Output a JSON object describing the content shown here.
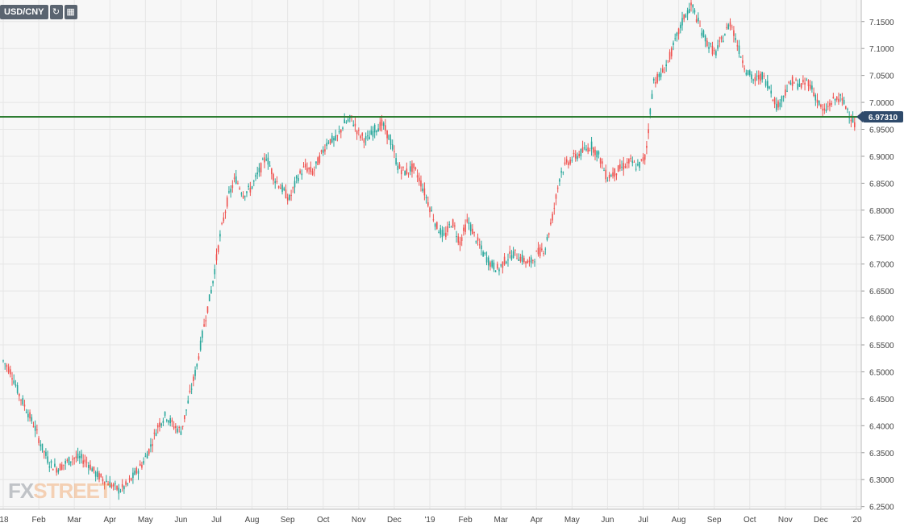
{
  "toolbar": {
    "symbol": "USD/CNY",
    "refresh_icon": "refresh-icon",
    "calendar_icon": "calendar-icon"
  },
  "watermark": {
    "part1": "FX",
    "part2": "STREET"
  },
  "colors": {
    "up": "#26a69a",
    "down": "#ef5350",
    "support_line": "#2e7d32",
    "price_badge": "#2f4a6b",
    "grid": "#e6e6e6",
    "background": "#f7f7f7"
  },
  "chart_data": {
    "type": "candlestick",
    "symbol": "USD/CNY",
    "ylim": [
      6.245,
      7.19
    ],
    "y_ticks": [
      "7.1500",
      "7.1000",
      "7.0500",
      "7.0000",
      "6.9500",
      "6.9000",
      "6.8500",
      "6.8000",
      "6.7500",
      "6.7000",
      "6.6500",
      "6.6000",
      "6.5500",
      "6.5000",
      "6.4500",
      "6.4000",
      "6.3500",
      "6.3000",
      "6.2500"
    ],
    "x_ticks": [
      "'18",
      "Feb",
      "Mar",
      "Apr",
      "May",
      "Jun",
      "Jul",
      "Aug",
      "Sep",
      "Oct",
      "Nov",
      "Dec",
      "'19",
      "Feb",
      "Mar",
      "Apr",
      "May",
      "Jun",
      "Jul",
      "Aug",
      "Sep",
      "Oct",
      "Nov",
      "Dec",
      "'20"
    ],
    "current_price": "6.97310",
    "horizontal_line": 6.9731,
    "grid": true,
    "approx_daily_closes": [
      6.52,
      6.5,
      6.46,
      6.43,
      6.4,
      6.36,
      6.33,
      6.32,
      6.33,
      6.34,
      6.34,
      6.33,
      6.31,
      6.3,
      6.29,
      6.28,
      6.29,
      6.31,
      6.33,
      6.36,
      6.4,
      6.42,
      6.4,
      6.39,
      6.45,
      6.51,
      6.59,
      6.66,
      6.75,
      6.82,
      6.86,
      6.83,
      6.84,
      6.87,
      6.9,
      6.86,
      6.84,
      6.82,
      6.86,
      6.88,
      6.87,
      6.9,
      6.93,
      6.93,
      6.96,
      6.97,
      6.94,
      6.93,
      6.95,
      6.96,
      6.93,
      6.88,
      6.87,
      6.88,
      6.85,
      6.81,
      6.77,
      6.75,
      6.78,
      6.74,
      6.78,
      6.75,
      6.72,
      6.7,
      6.69,
      6.71,
      6.72,
      6.71,
      6.7,
      6.72,
      6.73,
      6.79,
      6.87,
      6.89,
      6.9,
      6.91,
      6.92,
      6.9,
      6.86,
      6.87,
      6.88,
      6.89,
      6.88,
      6.9,
      7.04,
      7.05,
      7.08,
      7.12,
      7.16,
      7.18,
      7.14,
      7.11,
      7.09,
      7.12,
      7.15,
      7.1,
      7.06,
      7.04,
      7.05,
      7.03,
      6.99,
      7.02,
      7.04,
      7.03,
      7.04,
      7.01,
      6.98,
      7.0,
      7.01,
      6.99,
      6.96
    ]
  }
}
